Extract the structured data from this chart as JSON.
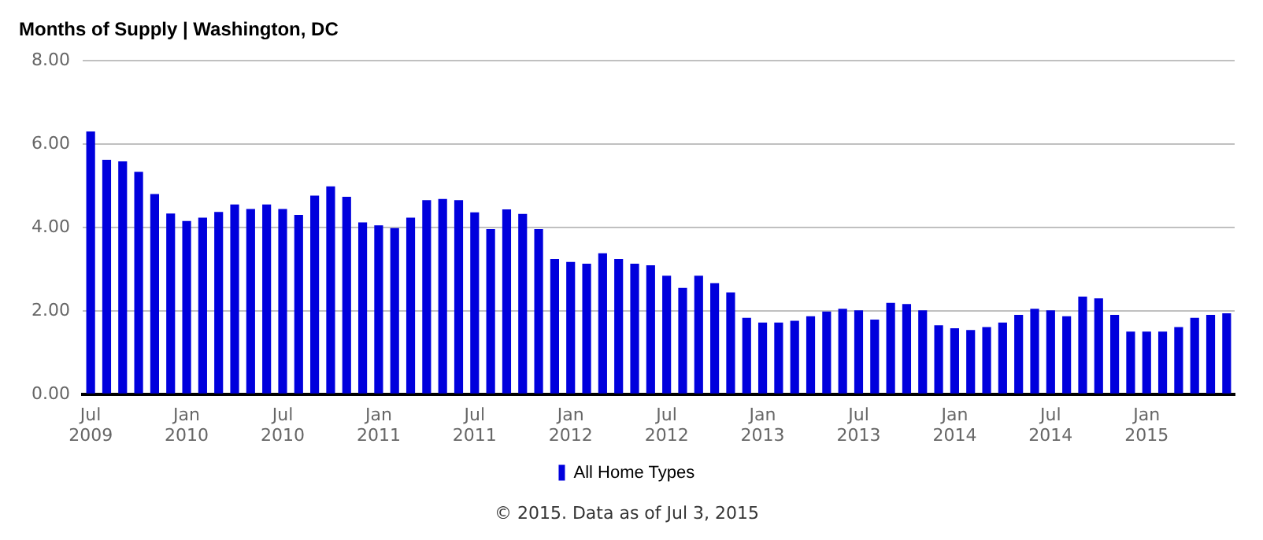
{
  "chart_data": {
    "type": "bar",
    "title": "Months of Supply | Washington, DC",
    "categories": [
      "Jul 2009",
      null,
      null,
      null,
      null,
      null,
      "Jan 2010",
      null,
      null,
      null,
      null,
      null,
      "Jul 2010",
      null,
      null,
      null,
      null,
      null,
      "Jan 2011",
      null,
      null,
      null,
      null,
      null,
      "Jul 2011",
      null,
      null,
      null,
      null,
      null,
      "Jan 2012",
      null,
      null,
      null,
      null,
      null,
      "Jul 2012",
      null,
      null,
      null,
      null,
      null,
      "Jan 2013",
      null,
      null,
      null,
      null,
      null,
      "Jul 2013",
      null,
      null,
      null,
      null,
      null,
      "Jan 2014",
      null,
      null,
      null,
      null,
      null,
      "Jul 2014",
      null,
      null,
      null,
      null,
      null,
      "Jan 2015",
      null,
      null,
      null,
      null,
      null
    ],
    "series": [
      {
        "name": "All Home Types",
        "color": "#0000dd",
        "values": [
          6.3,
          5.62,
          5.58,
          5.33,
          4.8,
          4.33,
          4.15,
          4.23,
          4.37,
          4.55,
          4.44,
          4.55,
          4.44,
          4.3,
          4.76,
          4.98,
          4.73,
          4.12,
          4.05,
          3.98,
          4.23,
          4.65,
          4.68,
          4.65,
          4.36,
          3.96,
          4.43,
          4.32,
          3.96,
          3.24,
          3.17,
          3.13,
          3.38,
          3.24,
          3.13,
          3.09,
          2.84,
          2.55,
          2.84,
          2.66,
          2.44,
          1.83,
          1.72,
          1.72,
          1.76,
          1.87,
          1.98,
          2.05,
          2.01,
          1.79,
          2.19,
          2.16,
          2.01,
          1.65,
          1.58,
          1.54,
          1.61,
          1.72,
          1.9,
          2.05,
          2.01,
          1.87,
          2.34,
          2.3,
          1.9,
          1.5,
          1.5,
          1.5,
          1.61,
          1.83,
          1.9,
          1.94
        ]
      }
    ],
    "ylim": [
      0,
      8
    ],
    "yticks": [
      {
        "value": 0,
        "label": "0.00"
      },
      {
        "value": 2,
        "label": "2.00"
      },
      {
        "value": 4,
        "label": "4.00"
      },
      {
        "value": 6,
        "label": "6.00"
      },
      {
        "value": 8,
        "label": "8.00"
      }
    ],
    "grid": "y",
    "legend": "bottom",
    "annotations": [
      "© 2015. Data as of Jul 3, 2015"
    ]
  }
}
